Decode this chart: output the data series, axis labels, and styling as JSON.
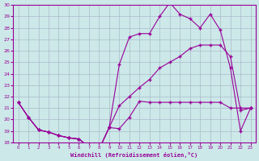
{
  "title": "",
  "xlabel": "Windchill (Refroidissement éolien,°C)",
  "ylabel": "",
  "bg_color": "#cce8e8",
  "line_color": "#990099",
  "grid_color": "#aabbcc",
  "xlim": [
    -0.5,
    23.5
  ],
  "ylim": [
    18,
    30
  ],
  "yticks": [
    18,
    19,
    20,
    21,
    22,
    23,
    24,
    25,
    26,
    27,
    28,
    29,
    30
  ],
  "xticks": [
    0,
    1,
    2,
    3,
    4,
    5,
    6,
    7,
    8,
    9,
    10,
    11,
    12,
    13,
    14,
    15,
    16,
    17,
    18,
    19,
    20,
    21,
    22,
    23
  ],
  "line1_x": [
    0,
    1,
    2,
    3,
    4,
    5,
    6,
    7,
    8,
    9,
    10,
    11,
    12,
    13,
    14,
    15,
    16,
    17,
    18,
    19,
    20,
    21,
    22,
    23
  ],
  "line1_y": [
    21.5,
    20.2,
    19.1,
    18.9,
    18.6,
    18.4,
    18.3,
    17.6,
    17.4,
    19.3,
    19.2,
    20.2,
    21.6,
    21.5,
    21.5,
    21.5,
    21.5,
    21.5,
    21.5,
    21.5,
    21.5,
    21.0,
    21.0,
    21.0
  ],
  "line2_x": [
    0,
    1,
    2,
    3,
    4,
    5,
    6,
    7,
    8,
    9,
    10,
    11,
    12,
    13,
    14,
    15,
    16,
    17,
    18,
    19,
    20,
    21,
    22,
    23
  ],
  "line2_y": [
    21.5,
    20.2,
    19.1,
    18.9,
    18.6,
    18.4,
    18.3,
    17.6,
    17.4,
    19.3,
    24.8,
    27.2,
    27.5,
    27.5,
    29.0,
    30.2,
    29.2,
    28.8,
    28.0,
    29.2,
    27.8,
    24.5,
    19.0,
    21.0
  ],
  "line3_x": [
    0,
    1,
    2,
    3,
    4,
    5,
    6,
    7,
    8,
    9,
    10,
    11,
    12,
    13,
    14,
    15,
    16,
    17,
    18,
    19,
    20,
    21,
    22,
    23
  ],
  "line3_y": [
    21.5,
    20.2,
    19.1,
    18.9,
    18.6,
    18.4,
    18.3,
    17.6,
    17.4,
    19.3,
    21.2,
    22.0,
    22.8,
    23.5,
    24.5,
    25.0,
    25.5,
    26.2,
    26.5,
    26.5,
    26.5,
    25.5,
    20.8,
    21.0
  ]
}
